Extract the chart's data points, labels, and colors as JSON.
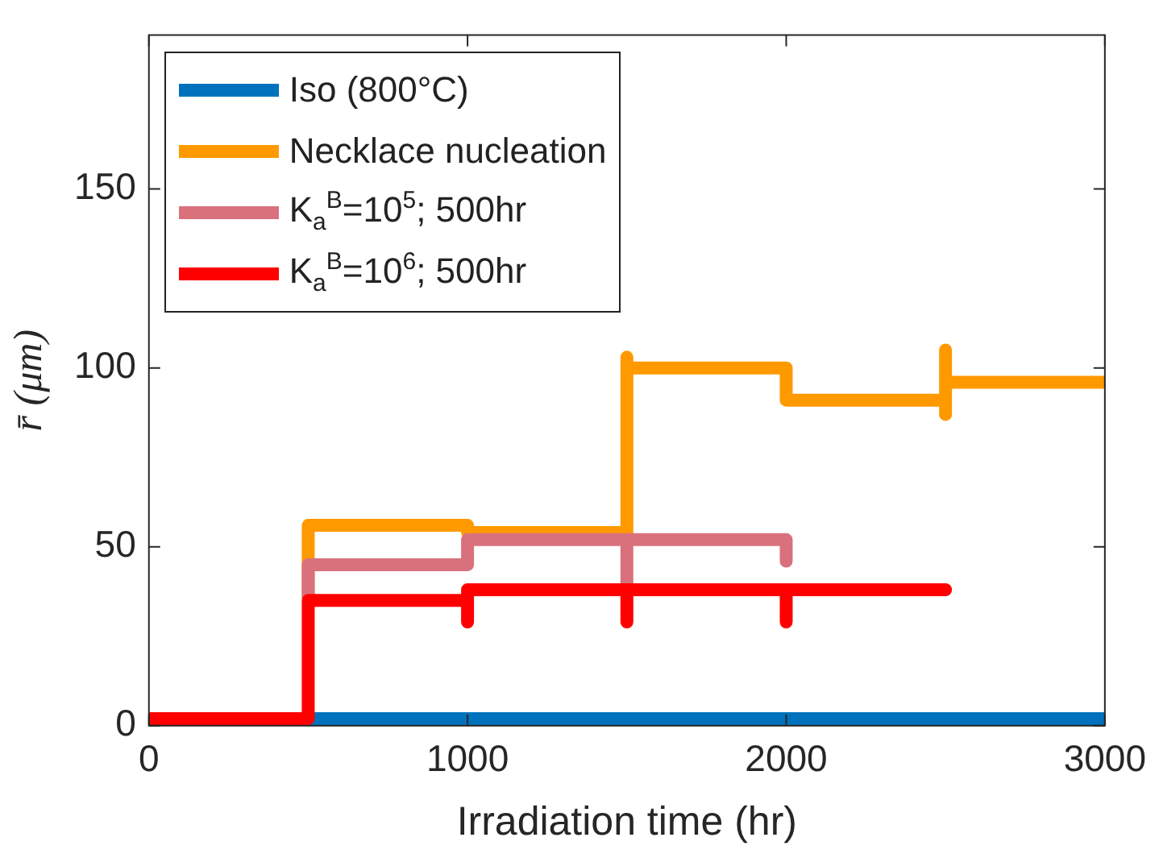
{
  "chart_data": {
    "type": "line",
    "xlabel": "Irradiation time (hr)",
    "ylabel": "r̄ (μm)",
    "xlim": [
      0,
      3000
    ],
    "xticks": [
      0,
      1000,
      2000,
      3000
    ],
    "ylim": [
      0,
      193
    ],
    "yticks": [
      0,
      50,
      100,
      150
    ],
    "grid": false,
    "legend": "top left",
    "marker": "none",
    "line_style": "solid",
    "series": [
      {
        "name": "Iso (800°C)",
        "color": "#0072bd",
        "x": [
          0,
          3000
        ],
        "values": [
          2,
          2
        ]
      },
      {
        "name": "Necklace nucleation",
        "color": "#ff9900",
        "x": [
          500,
          500,
          1000,
          1000,
          1500,
          1500,
          1500,
          2000,
          2000,
          2500,
          2500,
          2500,
          2500,
          3000
        ],
        "values": [
          36,
          56,
          56,
          54,
          54,
          103,
          100,
          100,
          91,
          91,
          87,
          105,
          96,
          96
        ]
      },
      {
        "name": "K$_{a}$$^{B}$=10$^{5}$; 500hr",
        "color": "#d9717d",
        "x": [
          500,
          500,
          1000,
          1000,
          1500,
          1500,
          1500,
          2000,
          2000
        ],
        "values": [
          36,
          45,
          45,
          52,
          52,
          40,
          52,
          52,
          46
        ]
      },
      {
        "name": "K$_{a}$$^{B}$=10$^{6}$; 500hr",
        "color": "#ff0000",
        "x": [
          0,
          500,
          500,
          1000,
          1000,
          1000,
          1500,
          1500,
          1500,
          2000,
          2000,
          2000,
          2500
        ],
        "values": [
          2,
          2,
          35,
          35,
          29,
          38,
          38,
          29,
          38,
          38,
          29,
          38,
          38
        ]
      }
    ]
  }
}
